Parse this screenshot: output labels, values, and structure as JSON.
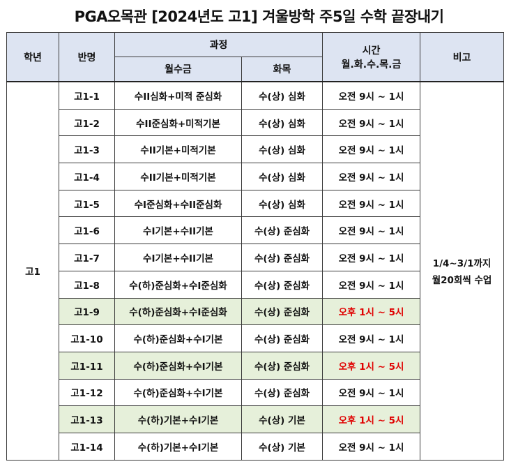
{
  "title": "PGA오목관 [2024년도 고1] 겨울방학 주5일 수학 끝장내기",
  "headers": {
    "grade": "학년",
    "class": "반명",
    "course": "과정",
    "mwf": "월수금",
    "tue_thu": "화목",
    "time_line1": "시간",
    "time_line2": "월.화.수.목.금",
    "note": "비고"
  },
  "grade_value": "고1",
  "note_line1": "1/4~3/1까지",
  "note_line2": "월20회씩 수업",
  "colors": {
    "header_bg": "#dde4f2",
    "highlight_bg": "#e6f0da",
    "afternoon_text": "#e00000"
  },
  "rows": [
    {
      "class": "고1-1",
      "mwf": "수II심화+미적 준심화",
      "tue_thu": "수(상) 심화",
      "time": "오전 9시 ~ 1시",
      "afternoon": false
    },
    {
      "class": "고1-2",
      "mwf": "수II준심화+미적기본",
      "tue_thu": "수(상) 심화",
      "time": "오전 9시 ~ 1시",
      "afternoon": false
    },
    {
      "class": "고1-3",
      "mwf": "수II기본+미적기본",
      "tue_thu": "수(상) 심화",
      "time": "오전 9시 ~ 1시",
      "afternoon": false
    },
    {
      "class": "고1-4",
      "mwf": "수II기본+미적기본",
      "tue_thu": "수(상) 심화",
      "time": "오전 9시 ~ 1시",
      "afternoon": false
    },
    {
      "class": "고1-5",
      "mwf": "수I준심화+수II준심화",
      "tue_thu": "수(상) 심화",
      "time": "오전 9시 ~ 1시",
      "afternoon": false
    },
    {
      "class": "고1-6",
      "mwf": "수I기본+수II기본",
      "tue_thu": "수(상) 준심화",
      "time": "오전 9시 ~ 1시",
      "afternoon": false
    },
    {
      "class": "고1-7",
      "mwf": "수I기본+수II기본",
      "tue_thu": "수(상) 준심화",
      "time": "오전 9시 ~ 1시",
      "afternoon": false
    },
    {
      "class": "고1-8",
      "mwf": "수(하)준심화+수I준심화",
      "tue_thu": "수(상) 준심화",
      "time": "오전 9시 ~ 1시",
      "afternoon": false
    },
    {
      "class": "고1-9",
      "mwf": "수(하)준심화+수I준심화",
      "tue_thu": "수(상) 준심화",
      "time": "오후 1시 ~ 5시",
      "afternoon": true
    },
    {
      "class": "고1-10",
      "mwf": "수(하)준심화+수I기본",
      "tue_thu": "수(상) 준심화",
      "time": "오전 9시 ~ 1시",
      "afternoon": false
    },
    {
      "class": "고1-11",
      "mwf": "수(하)준심화+수I기본",
      "tue_thu": "수(상) 준심화",
      "time": "오후 1시 ~ 5시",
      "afternoon": true
    },
    {
      "class": "고1-12",
      "mwf": "수(하)준심화+수I기본",
      "tue_thu": "수(상) 준심화",
      "time": "오전 9시 ~ 1시",
      "afternoon": false
    },
    {
      "class": "고1-13",
      "mwf": "수(하)기본+수I기본",
      "tue_thu": "수(상) 기본",
      "time": "오후 1시 ~ 5시",
      "afternoon": true
    },
    {
      "class": "고1-14",
      "mwf": "수(하)기본+수I기본",
      "tue_thu": "수(상) 기본",
      "time": "오전 9시 ~ 1시",
      "afternoon": false
    }
  ]
}
